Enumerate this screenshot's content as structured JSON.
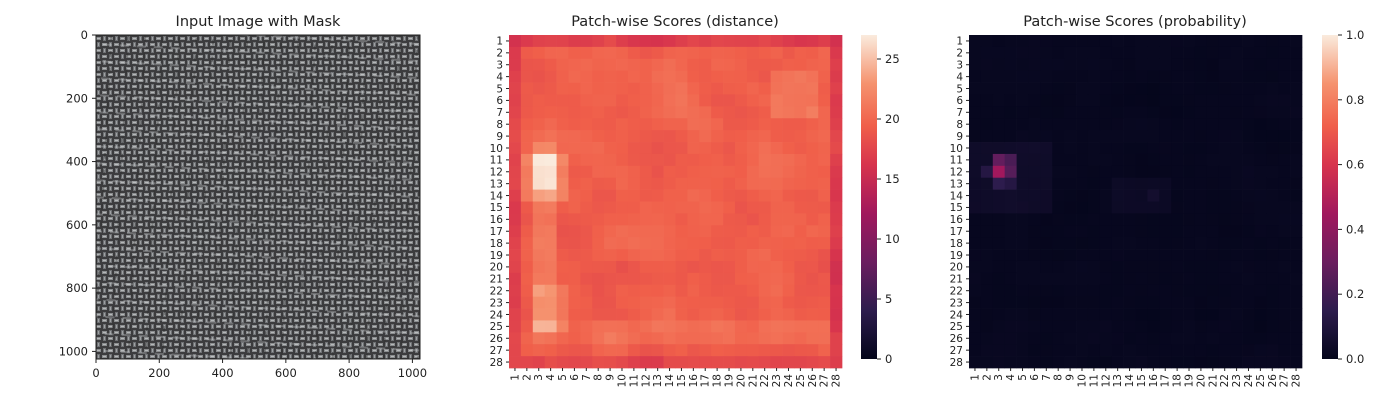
{
  "chart_data": [
    {
      "type": "image",
      "title": "Input Image with Mask",
      "x_ticks": [
        "0",
        "200",
        "400",
        "600",
        "800",
        "1000"
      ],
      "y_ticks": [
        "0",
        "200",
        "400",
        "600",
        "800",
        "1000"
      ],
      "xlim": [
        0,
        1024
      ],
      "ylim": [
        1024,
        0
      ],
      "content": "woven fabric texture (grayscale)"
    },
    {
      "type": "heatmap",
      "title": "Patch-wise Scores (distance)",
      "rows": 28,
      "cols": 28,
      "x_tick_labels": [
        "1",
        "2",
        "3",
        "4",
        "5",
        "6",
        "7",
        "8",
        "9",
        "10",
        "11",
        "12",
        "13",
        "14",
        "15",
        "16",
        "17",
        "18",
        "19",
        "20",
        "21",
        "22",
        "23",
        "24",
        "25",
        "26",
        "27",
        "28"
      ],
      "y_tick_labels": [
        "1",
        "2",
        "3",
        "4",
        "5",
        "6",
        "7",
        "8",
        "9",
        "10",
        "11",
        "12",
        "13",
        "14",
        "15",
        "16",
        "17",
        "18",
        "19",
        "20",
        "21",
        "22",
        "23",
        "24",
        "25",
        "26",
        "27",
        "28"
      ],
      "colorbar": {
        "min": 0,
        "max": 27,
        "ticks": [
          "0",
          "5",
          "10",
          "15",
          "20",
          "25"
        ]
      },
      "colormap": "rocket",
      "value_range_observed": [
        16,
        27
      ],
      "hotspot": {
        "rows": [
          11,
          13
        ],
        "cols": [
          2,
          3
        ],
        "value": 27
      }
    },
    {
      "type": "heatmap",
      "title": "Patch-wise Scores (probability)",
      "rows": 28,
      "cols": 28,
      "x_tick_labels": [
        "1",
        "2",
        "3",
        "4",
        "5",
        "6",
        "7",
        "8",
        "9",
        "10",
        "11",
        "12",
        "13",
        "14",
        "15",
        "16",
        "17",
        "18",
        "19",
        "20",
        "21",
        "22",
        "23",
        "24",
        "25",
        "26",
        "27",
        "28"
      ],
      "y_tick_labels": [
        "1",
        "2",
        "3",
        "4",
        "5",
        "6",
        "7",
        "8",
        "9",
        "10",
        "11",
        "12",
        "13",
        "14",
        "15",
        "16",
        "17",
        "18",
        "19",
        "20",
        "21",
        "22",
        "23",
        "24",
        "25",
        "26",
        "27",
        "28"
      ],
      "colorbar": {
        "min": 0.0,
        "max": 1.0,
        "ticks": [
          "0.0",
          "0.2",
          "0.4",
          "0.6",
          "0.8",
          "1.0"
        ]
      },
      "colormap": "rocket",
      "hotspots": [
        {
          "row": 12,
          "col": 3,
          "value": 0.45
        },
        {
          "row": 11,
          "col": 3,
          "value": 0.28
        },
        {
          "row": 12,
          "col": 4,
          "value": 0.25
        },
        {
          "row": 11,
          "col": 4,
          "value": 0.22
        },
        {
          "row": 13,
          "col": 3,
          "value": 0.15
        },
        {
          "row": 13,
          "col": 4,
          "value": 0.12
        },
        {
          "row": 12,
          "col": 2,
          "value": 0.12
        },
        {
          "row": 14,
          "col": 16,
          "value": 0.06
        }
      ]
    }
  ]
}
